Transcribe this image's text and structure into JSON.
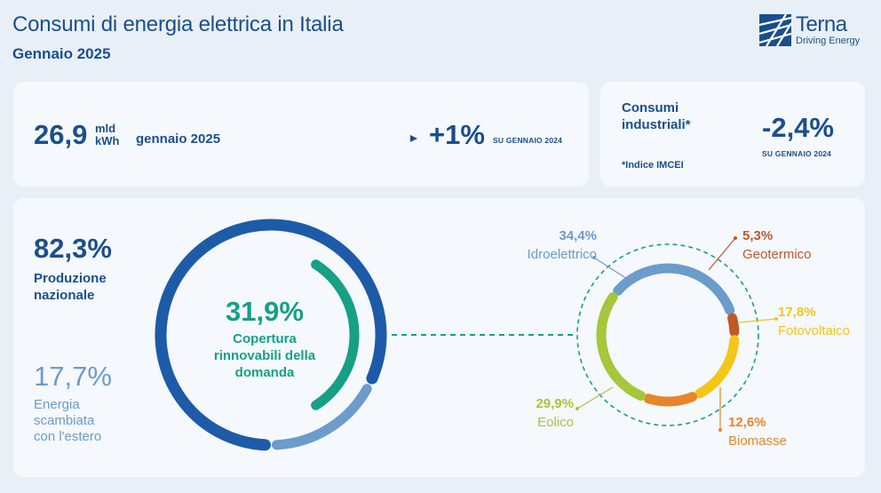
{
  "header": {
    "title": "Consumi di energia elettrica in Italia",
    "subtitle": "Gennaio 2025",
    "logo_name": "Terna",
    "logo_tagline": "Driving Energy"
  },
  "consumption": {
    "value": "26,9",
    "unit_line1": "mld",
    "unit_line2": "kWh",
    "period": "gennaio 2025",
    "delta": "+1%",
    "delta_label": "SU GENNAIO 2024"
  },
  "industrial": {
    "label_line1": "Consumi",
    "label_line2": "industriali*",
    "note": "*Indice IMCEI",
    "delta": "-2,4%",
    "delta_label": "SU GENNAIO 2024"
  },
  "colors": {
    "dark_blue": "#1a4f8c",
    "ring_blue": "#1d5ba8",
    "light_blue": "#6b9cca",
    "green": "#16a086",
    "idro": "#6b9cca",
    "geo": "#c0582b",
    "foto": "#f5c518",
    "bio": "#e6852b",
    "eolico": "#a6c63b"
  },
  "chart_data": [
    {
      "type": "pie",
      "variant": "donut",
      "title": "",
      "slices": [
        {
          "label": "Produzione nazionale",
          "value": 82.3,
          "display": "82,3%",
          "line1": "Produzione",
          "line2": "nazionale",
          "color": "#1d5ba8"
        },
        {
          "label": "Energia scambiata con l'estero",
          "value": 17.7,
          "display": "17,7%",
          "line1": "Energia",
          "line2": "scambiata",
          "line3": "con l'estero",
          "color": "#6b9cca"
        }
      ],
      "inner_arc": {
        "label": "Copertura rinnovabili della domanda",
        "value": 31.9,
        "display": "31,9%",
        "line1": "Copertura",
        "line2": "rinnovabili della",
        "line3": "domanda",
        "color": "#16a086"
      }
    },
    {
      "type": "pie",
      "variant": "donut",
      "title": "",
      "slices": [
        {
          "label": "Idroelettrico",
          "value": 34.4,
          "display": "34,4%",
          "color": "#6b9cca"
        },
        {
          "label": "Geotermico",
          "value": 5.3,
          "display": "5,3%",
          "color": "#c0582b"
        },
        {
          "label": "Fotovoltaico",
          "value": 17.8,
          "display": "17,8%",
          "color": "#f5c518"
        },
        {
          "label": "Biomasse",
          "value": 12.6,
          "display": "12,6%",
          "color": "#e6852b"
        },
        {
          "label": "Eolico",
          "value": 29.9,
          "display": "29,9%",
          "color": "#a6c63b"
        }
      ]
    }
  ]
}
